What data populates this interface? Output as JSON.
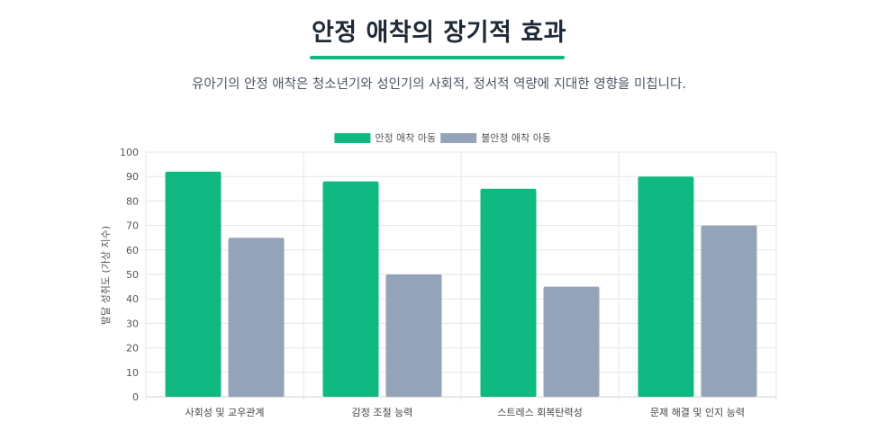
{
  "header": {
    "title": "안정 애착의 장기적 효과",
    "subtitle": "유아기의 안정 애착은 청소년기와 성인기의 사회적, 정서적 역량에 지대한 영향을 미칩니다."
  },
  "colors": {
    "accent": "#10b981",
    "secure": "#10b981",
    "insecure": "#94a3b8"
  },
  "chart_data": {
    "type": "bar",
    "categories": [
      "사회성 및 교우관계",
      "감정 조절 능력",
      "스트레스 회복탄력성",
      "문제 해결 및 인지 능력"
    ],
    "series": [
      {
        "name": "안정 애착 아동",
        "values": [
          92,
          88,
          85,
          90
        ],
        "color": "#10b981"
      },
      {
        "name": "불안정 애착 아동",
        "values": [
          65,
          50,
          45,
          70
        ],
        "color": "#94a3b8"
      }
    ],
    "ylabel": "발달 성취도 (가상 지수)",
    "xlabel": "",
    "ylim": [
      0,
      100
    ],
    "yticks": [
      0,
      10,
      20,
      30,
      40,
      50,
      60,
      70,
      80,
      90,
      100
    ],
    "grid": true,
    "legend": "top-center"
  }
}
